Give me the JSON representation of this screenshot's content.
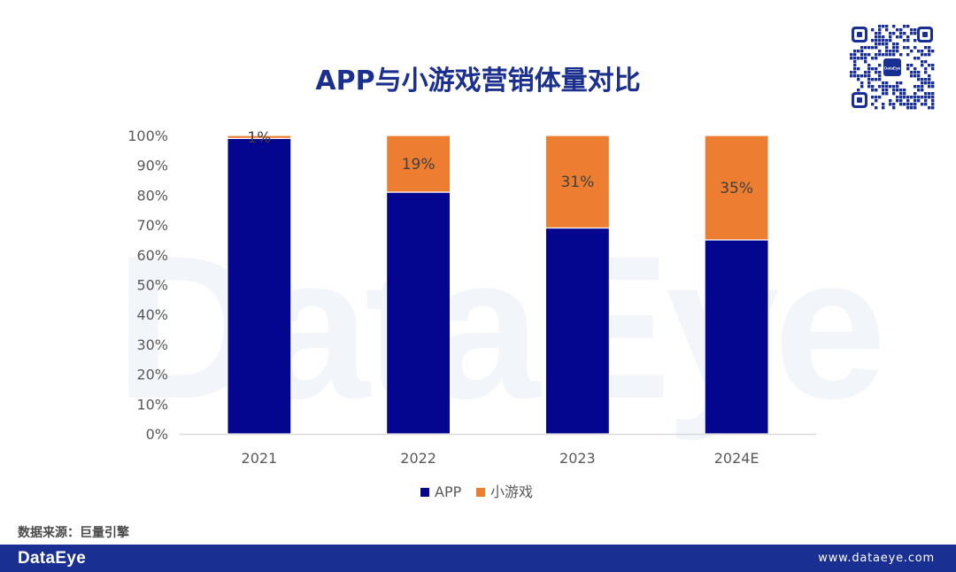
{
  "watermark": "DataEye",
  "title": "APP与小游戏营销体量对比",
  "source": "数据来源：巨量引擎",
  "footer": {
    "logo": "DataEye",
    "url": "www.dataeye.com"
  },
  "qr_center_label": "DataEye",
  "colors": {
    "app": "#04068f",
    "mini_game": "#ed7d31",
    "footer": "#1a2f92",
    "title": "#1b2f8f"
  },
  "chart_data": {
    "type": "bar",
    "stacked": true,
    "categories": [
      "2021",
      "2022",
      "2023",
      "2024E"
    ],
    "series": [
      {
        "name": "APP",
        "values": [
          99,
          81,
          69,
          65
        ]
      },
      {
        "name": "小游戏",
        "values": [
          1,
          19,
          31,
          35
        ]
      }
    ],
    "data_labels": [
      "1%",
      "19%",
      "31%",
      "35%"
    ],
    "ylim": [
      0,
      100
    ],
    "y_ticks": [
      "0%",
      "10%",
      "20%",
      "30%",
      "40%",
      "50%",
      "60%",
      "70%",
      "80%",
      "90%",
      "100%"
    ],
    "gridlines": false,
    "legend_position": "bottom"
  }
}
